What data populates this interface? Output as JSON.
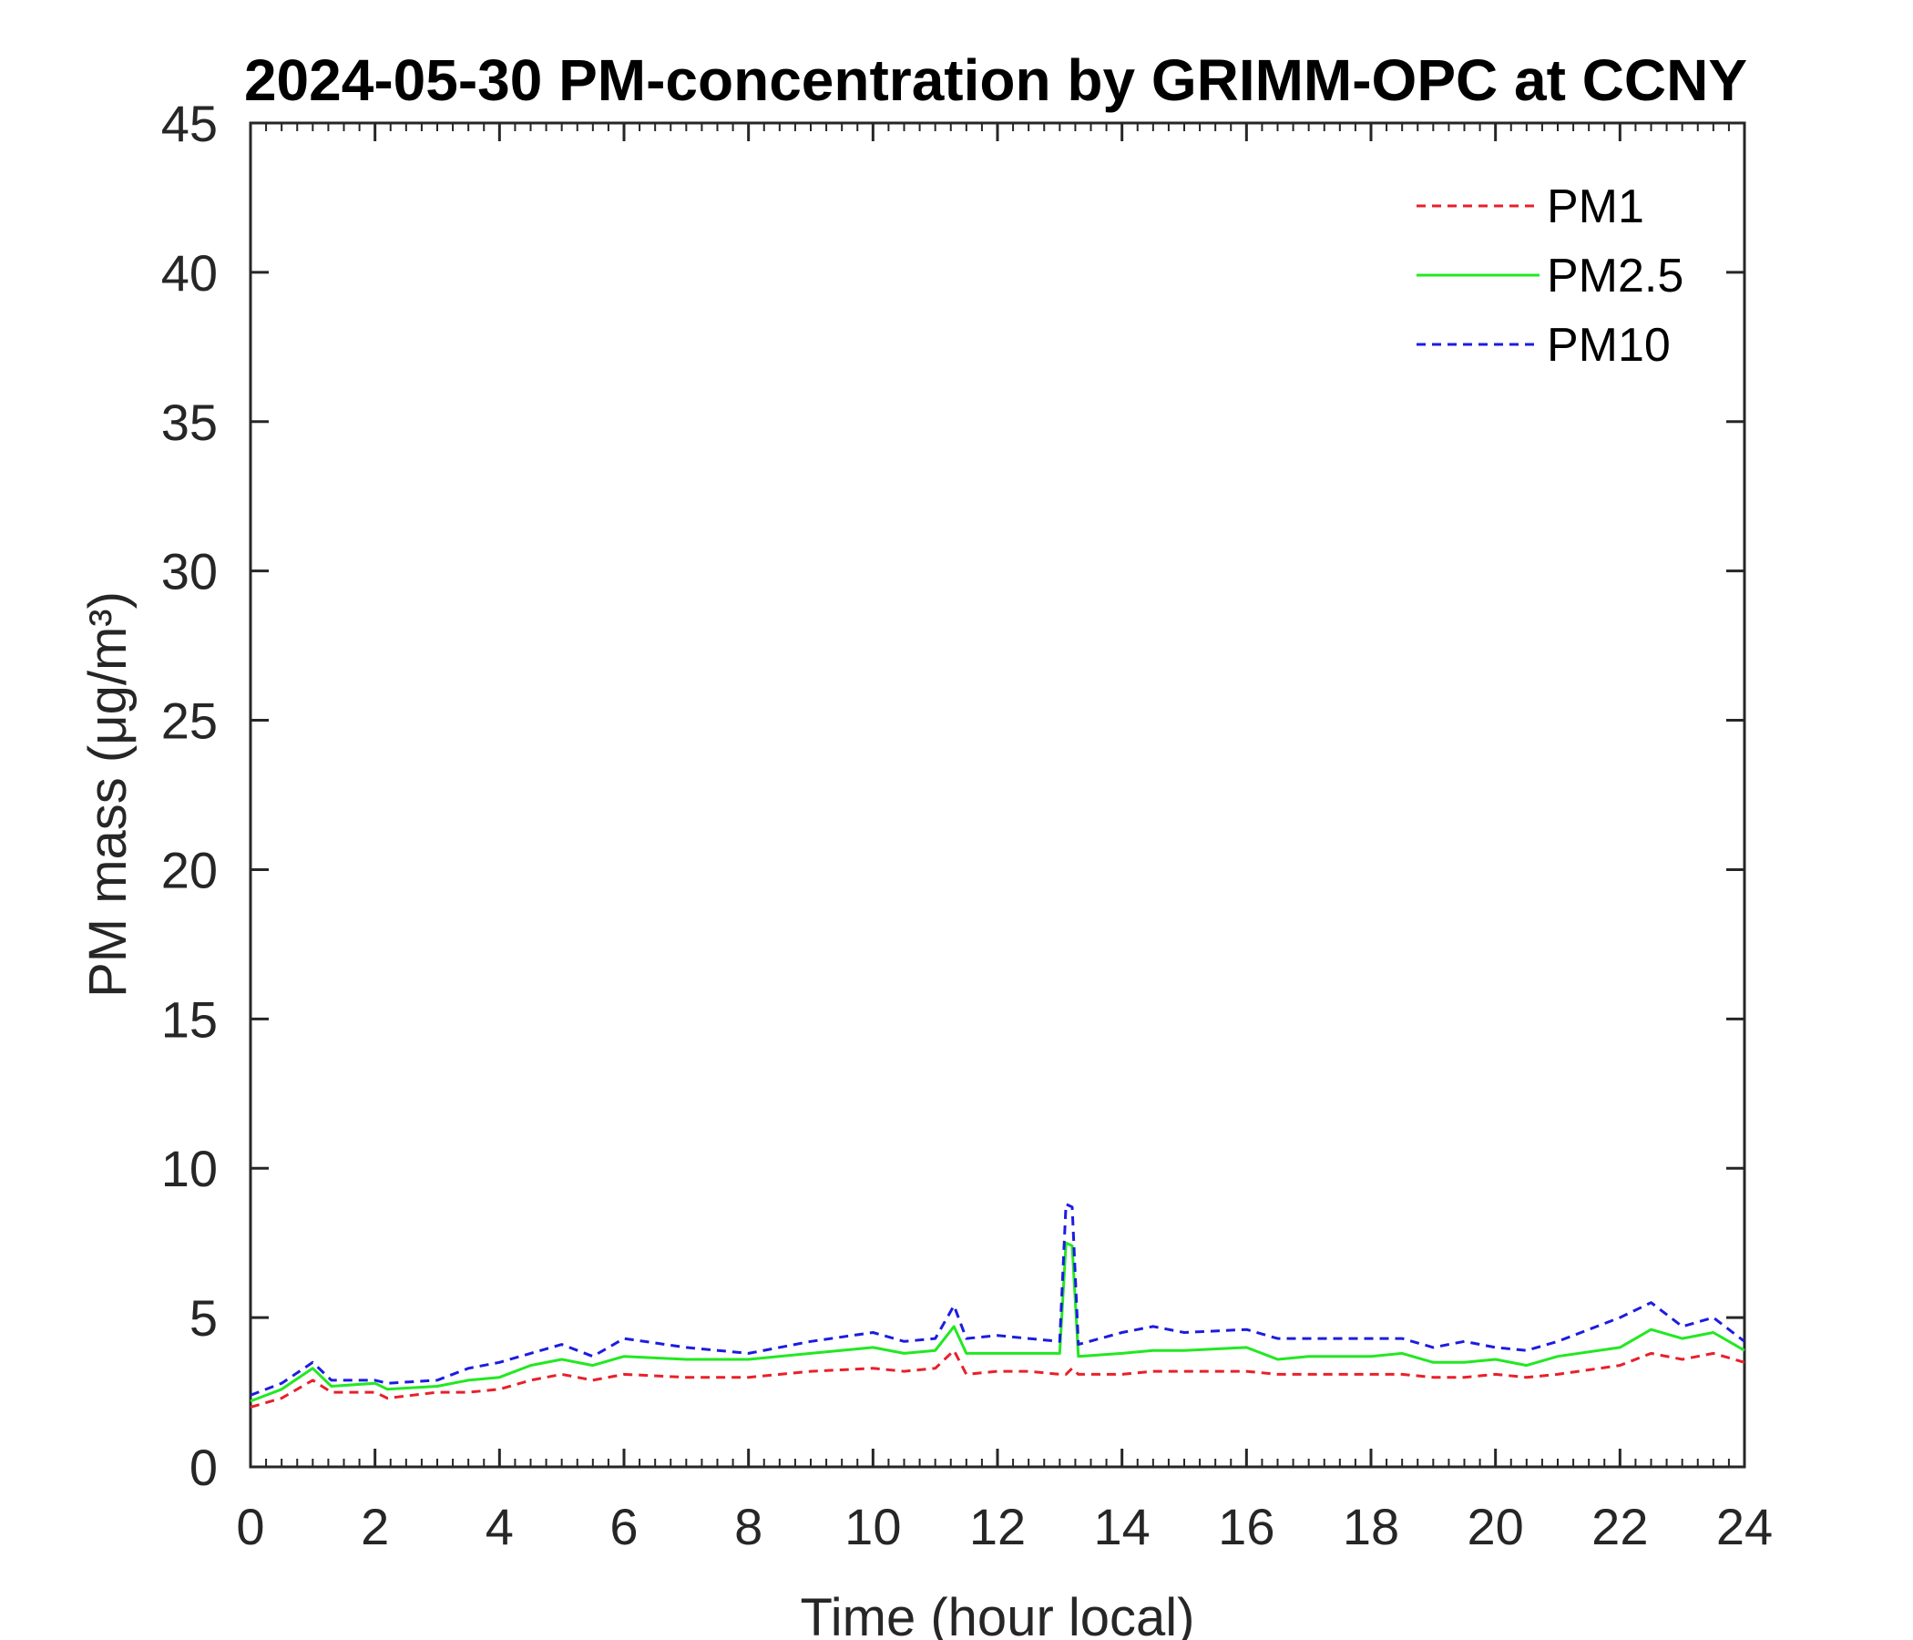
{
  "chart_data": {
    "type": "line",
    "title": "2024-05-30 PM-concentration by GRIMM-OPC at CCNY",
    "xlabel": "Time (hour local)",
    "ylabel": "PM mass (μg/m³)",
    "xlim": [
      0,
      24
    ],
    "ylim": [
      0,
      45
    ],
    "xticks": [
      0,
      2,
      4,
      6,
      8,
      10,
      12,
      14,
      16,
      18,
      20,
      22,
      24
    ],
    "yticks": [
      0,
      5,
      10,
      15,
      20,
      25,
      30,
      35,
      40,
      45
    ],
    "grid": false,
    "legend_position": "top-right",
    "x": [
      0,
      0.5,
      1.0,
      1.3,
      2.0,
      2.2,
      3.0,
      3.5,
      4.0,
      4.5,
      5.0,
      5.5,
      6.0,
      7.0,
      8.0,
      9.0,
      10.0,
      10.5,
      11.0,
      11.3,
      11.5,
      12.0,
      12.5,
      13.0,
      13.1,
      13.2,
      13.3,
      14.0,
      14.5,
      15.0,
      16.0,
      16.5,
      17.0,
      18.0,
      18.5,
      19.0,
      19.5,
      20.0,
      20.5,
      21.0,
      22.0,
      22.5,
      23.0,
      23.5,
      24.0
    ],
    "series": [
      {
        "name": "PM1",
        "color": "#e8202a",
        "dash": "dashed",
        "values": [
          2.0,
          2.3,
          2.9,
          2.5,
          2.5,
          2.3,
          2.5,
          2.5,
          2.6,
          2.9,
          3.1,
          2.9,
          3.1,
          3.0,
          3.0,
          3.2,
          3.3,
          3.2,
          3.3,
          3.9,
          3.1,
          3.2,
          3.2,
          3.1,
          3.1,
          3.3,
          3.1,
          3.1,
          3.2,
          3.2,
          3.2,
          3.1,
          3.1,
          3.1,
          3.1,
          3.0,
          3.0,
          3.1,
          3.0,
          3.1,
          3.4,
          3.8,
          3.6,
          3.8,
          3.5
        ]
      },
      {
        "name": "PM2.5",
        "color": "#22e822",
        "dash": "solid",
        "values": [
          2.2,
          2.6,
          3.3,
          2.7,
          2.8,
          2.6,
          2.7,
          2.9,
          3.0,
          3.4,
          3.6,
          3.4,
          3.7,
          3.6,
          3.6,
          3.8,
          4.0,
          3.8,
          3.9,
          4.7,
          3.8,
          3.8,
          3.8,
          3.8,
          7.5,
          7.4,
          3.7,
          3.8,
          3.9,
          3.9,
          4.0,
          3.6,
          3.7,
          3.7,
          3.8,
          3.5,
          3.5,
          3.6,
          3.4,
          3.7,
          4.0,
          4.6,
          4.3,
          4.5,
          3.9
        ]
      },
      {
        "name": "PM10",
        "color": "#1c1ce0",
        "dash": "dashed",
        "values": [
          2.4,
          2.8,
          3.5,
          2.9,
          2.9,
          2.8,
          2.9,
          3.3,
          3.5,
          3.8,
          4.1,
          3.7,
          4.3,
          4.0,
          3.8,
          4.2,
          4.5,
          4.2,
          4.3,
          5.4,
          4.3,
          4.4,
          4.3,
          4.2,
          8.8,
          8.7,
          4.1,
          4.5,
          4.7,
          4.5,
          4.6,
          4.3,
          4.3,
          4.3,
          4.3,
          4.0,
          4.2,
          4.0,
          3.9,
          4.2,
          5.0,
          5.5,
          4.7,
          5.0,
          4.2
        ]
      }
    ]
  }
}
